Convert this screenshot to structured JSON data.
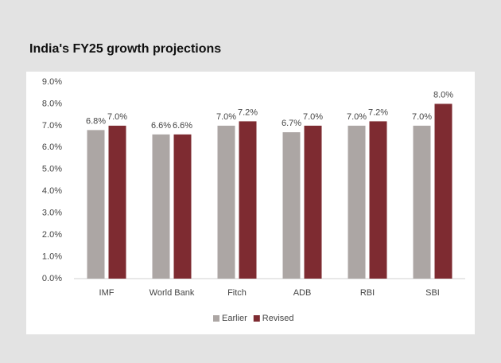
{
  "chart_data": {
    "type": "bar",
    "title": "India's FY25 growth projections",
    "categories": [
      "IMF",
      "World Bank",
      "Fitch",
      "ADB",
      "RBI",
      "SBI"
    ],
    "series": [
      {
        "name": "Earlier",
        "color": "#aca6a4",
        "values": [
          6.8,
          6.6,
          7.0,
          6.7,
          7.0,
          7.0
        ],
        "value_labels": [
          "6.8%",
          "6.6%",
          "7.0%",
          "6.7%",
          "7.0%",
          "7.0%"
        ]
      },
      {
        "name": "Revised",
        "color": "#7e2b31",
        "values": [
          7.0,
          6.6,
          7.2,
          7.0,
          7.2,
          8.0
        ],
        "value_labels": [
          "7.0%",
          "6.6%",
          "7.2%",
          "7.0%",
          "7.2%",
          "8.0%"
        ]
      }
    ],
    "ylim": [
      0,
      9
    ],
    "yticks": [
      {
        "value": 0,
        "label": "0.0%"
      },
      {
        "value": 1,
        "label": "1.0%"
      },
      {
        "value": 2,
        "label": "2.0%"
      },
      {
        "value": 3,
        "label": "3.0%"
      },
      {
        "value": 4,
        "label": "4.0%"
      },
      {
        "value": 5,
        "label": "5.0%"
      },
      {
        "value": 6,
        "label": "6.0%"
      },
      {
        "value": 7,
        "label": "7.0%"
      },
      {
        "value": 8,
        "label": "8.0%"
      },
      {
        "value": 9,
        "label": "9.0%"
      }
    ],
    "grid": false,
    "legend": "bottom"
  }
}
